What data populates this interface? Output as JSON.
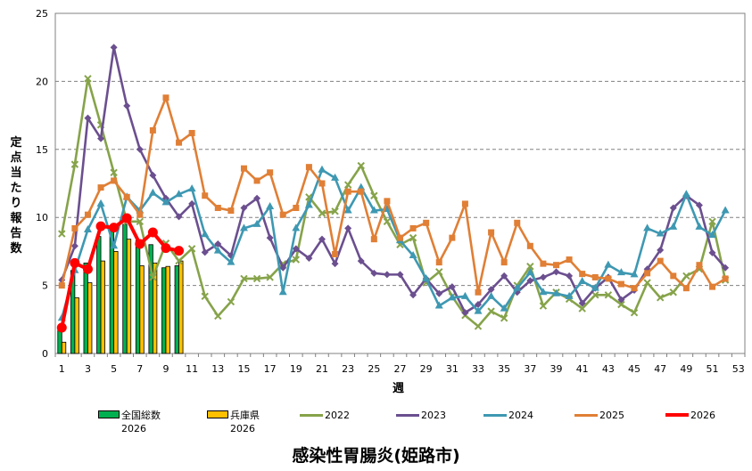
{
  "chart_data": {
    "type": "combo",
    "title": "感染性胃腸炎(姫路市)",
    "xlabel": "週",
    "ylabel": "定点当たり報告数",
    "ylim": [
      0,
      25
    ],
    "yticks": [
      0,
      5,
      10,
      15,
      20,
      25
    ],
    "xticks": [
      1,
      3,
      5,
      7,
      9,
      11,
      13,
      15,
      17,
      19,
      21,
      23,
      25,
      27,
      29,
      31,
      33,
      35,
      37,
      39,
      41,
      43,
      45,
      47,
      49,
      51,
      53
    ],
    "weeks": 53,
    "grid": "horizontal dashed",
    "legend_position": "bottom",
    "bars": [
      {
        "name": "全国総数",
        "name2": "2026",
        "color": "#00b050",
        "values": [
          1.9,
          6.1,
          6.65,
          8.6,
          9.3,
          9.5,
          8.3,
          8.0,
          6.3,
          6.45
        ]
      },
      {
        "name": "兵庫県",
        "name2": "2026",
        "color": "#ffc000",
        "values": [
          0.83,
          4.1,
          5.2,
          6.8,
          7.5,
          8.4,
          6.45,
          6.65,
          6.4,
          6.8
        ]
      }
    ],
    "series": [
      {
        "name": "2022",
        "color": "#86a34a",
        "marker": "x",
        "values": [
          8.8,
          13.9,
          20.2,
          16.8,
          13.3,
          9.7,
          9.7,
          5.6,
          8.1,
          6.8,
          7.7,
          4.2,
          2.75,
          3.8,
          5.5,
          5.5,
          5.6,
          6.6,
          6.9,
          11.5,
          10.3,
          10.45,
          12.4,
          13.8,
          11.6,
          9.7,
          8.0,
          8.5,
          5.2,
          6.0,
          4.2,
          2.8,
          2.0,
          3.1,
          2.6,
          5.0,
          6.4,
          3.5,
          4.5,
          4.0,
          3.3,
          4.3,
          4.3,
          3.6,
          3.0,
          5.2,
          4.1,
          4.5,
          5.7,
          6.2,
          9.7,
          5.4
        ]
      },
      {
        "name": "2023",
        "color": "#6b4f8f",
        "marker": "diamond",
        "values": [
          5.4,
          7.9,
          17.3,
          15.8,
          22.5,
          18.2,
          15.0,
          13.1,
          11.4,
          10.05,
          11.0,
          7.44,
          8.05,
          7.2,
          10.7,
          11.4,
          8.5,
          6.3,
          7.7,
          7.0,
          8.4,
          6.6,
          9.2,
          6.8,
          5.9,
          5.8,
          5.8,
          4.3,
          5.5,
          4.4,
          4.9,
          3.0,
          3.6,
          4.7,
          5.7,
          4.5,
          5.35,
          5.6,
          6.0,
          5.7,
          3.7,
          4.8,
          5.6,
          3.95,
          4.65,
          6.2,
          7.6,
          10.7,
          11.6,
          10.9,
          7.4,
          6.3
        ]
      },
      {
        "name": "2024",
        "color": "#3e98b2",
        "marker": "triangle",
        "values": [
          2.6,
          6.1,
          9.1,
          11.0,
          7.9,
          11.5,
          10.5,
          11.8,
          11.1,
          11.7,
          12.1,
          8.75,
          7.55,
          6.7,
          9.2,
          9.5,
          10.8,
          4.5,
          9.2,
          10.9,
          13.5,
          12.9,
          10.5,
          12.2,
          10.5,
          10.6,
          8.3,
          7.2,
          5.5,
          3.5,
          4.1,
          4.2,
          3.1,
          4.2,
          3.3,
          4.8,
          5.95,
          4.5,
          4.4,
          4.2,
          5.3,
          4.8,
          6.5,
          5.95,
          5.8,
          9.2,
          8.8,
          9.3,
          11.7,
          9.3,
          8.7,
          10.5
        ]
      },
      {
        "name": "2025",
        "color": "#e07f35",
        "marker": "square",
        "values": [
          5.0,
          9.2,
          10.2,
          12.2,
          12.7,
          11.5,
          10.2,
          16.4,
          18.8,
          15.5,
          16.2,
          11.6,
          10.7,
          10.5,
          13.6,
          12.7,
          13.3,
          10.2,
          10.7,
          13.7,
          12.5,
          7.3,
          11.9,
          11.9,
          8.4,
          11.2,
          8.5,
          9.2,
          9.6,
          6.7,
          8.5,
          11.0,
          4.5,
          8.9,
          6.7,
          9.6,
          7.9,
          6.6,
          6.5,
          6.9,
          5.85,
          5.6,
          5.5,
          5.1,
          4.8,
          5.9,
          6.8,
          5.7,
          4.8,
          6.5,
          4.9,
          5.5
        ]
      },
      {
        "name": "2026",
        "color": "#ff0000",
        "marker": "circle",
        "values": [
          1.9,
          6.65,
          6.2,
          9.35,
          9.25,
          9.95,
          8.05,
          8.9,
          7.75,
          7.55
        ]
      }
    ]
  }
}
